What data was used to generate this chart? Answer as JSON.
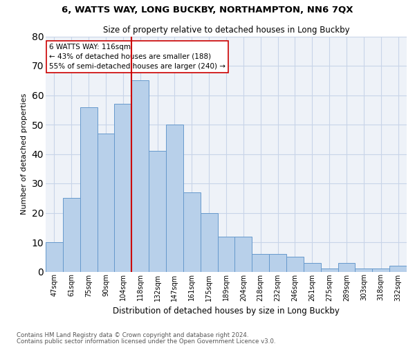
{
  "title1": "6, WATTS WAY, LONG BUCKBY, NORTHAMPTON, NN6 7QX",
  "title2": "Size of property relative to detached houses in Long Buckby",
  "xlabel": "Distribution of detached houses by size in Long Buckby",
  "ylabel": "Number of detached properties",
  "categories": [
    "47sqm",
    "61sqm",
    "75sqm",
    "90sqm",
    "104sqm",
    "118sqm",
    "132sqm",
    "147sqm",
    "161sqm",
    "175sqm",
    "189sqm",
    "204sqm",
    "218sqm",
    "232sqm",
    "246sqm",
    "261sqm",
    "275sqm",
    "289sqm",
    "303sqm",
    "318sqm",
    "332sqm"
  ],
  "values": [
    10,
    25,
    56,
    47,
    57,
    65,
    41,
    50,
    27,
    20,
    12,
    12,
    6,
    6,
    5,
    3,
    1,
    3,
    1,
    1,
    2
  ],
  "bar_color": "#b8d0ea",
  "bar_edge_color": "#6699cc",
  "vline_color": "#cc0000",
  "annotation_text": "6 WATTS WAY: 116sqm\n← 43% of detached houses are smaller (188)\n55% of semi-detached houses are larger (240) →",
  "annotation_box_color": "white",
  "annotation_box_edge": "#cc0000",
  "grid_color": "#c8d4e8",
  "bg_color": "#eef2f8",
  "footer1": "Contains HM Land Registry data © Crown copyright and database right 2024.",
  "footer2": "Contains public sector information licensed under the Open Government Licence v3.0.",
  "ylim": [
    0,
    80
  ],
  "yticks": [
    0,
    10,
    20,
    30,
    40,
    50,
    60,
    70,
    80
  ]
}
